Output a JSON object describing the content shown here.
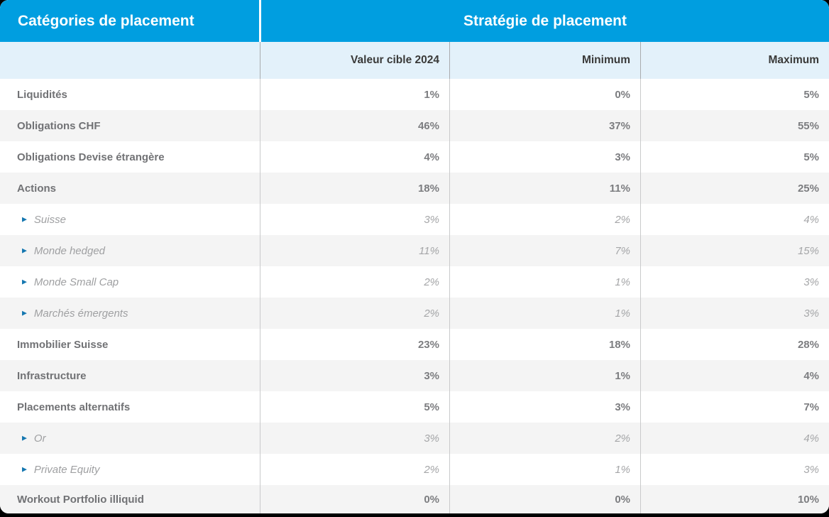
{
  "header": {
    "categories_title": "Catégories de placement",
    "strategy_title": "Stratégie de placement"
  },
  "columns": {
    "target": "Valeur cible 2024",
    "min": "Minimum",
    "max": "Maximum"
  },
  "icons": {
    "bullet": "▶"
  },
  "colors": {
    "header_blue": "#009EE0",
    "subheader_light_blue": "#E3F1FA",
    "alt_row_gray": "#F4F4F4",
    "bullet_blue": "#1577B0",
    "label_gray": "#717275",
    "sub_label_gray": "#9FA0A2",
    "page_background": "#000000"
  },
  "table": {
    "rows": [
      {
        "label": "Liquidités",
        "target": "1%",
        "min": "0%",
        "max": "5%",
        "sub": false
      },
      {
        "label": "Obligations CHF",
        "target": "46%",
        "min": "37%",
        "max": "55%",
        "sub": false
      },
      {
        "label": "Obligations Devise étrangère",
        "target": "4%",
        "min": "3%",
        "max": "5%",
        "sub": false
      },
      {
        "label": "Actions",
        "target": "18%",
        "min": "11%",
        "max": "25%",
        "sub": false
      },
      {
        "label": "Suisse",
        "target": "3%",
        "min": "2%",
        "max": "4%",
        "sub": true
      },
      {
        "label": "Monde hedged",
        "target": "11%",
        "min": "7%",
        "max": "15%",
        "sub": true
      },
      {
        "label": "Monde Small Cap",
        "target": "2%",
        "min": "1%",
        "max": "3%",
        "sub": true
      },
      {
        "label": "Marchés émergents",
        "target": "2%",
        "min": "1%",
        "max": "3%",
        "sub": true
      },
      {
        "label": "Immobilier Suisse",
        "target": "23%",
        "min": "18%",
        "max": "28%",
        "sub": false
      },
      {
        "label": "Infrastructure",
        "target": "3%",
        "min": "1%",
        "max": "4%",
        "sub": false
      },
      {
        "label": "Placements alternatifs",
        "target": "5%",
        "min": "3%",
        "max": "7%",
        "sub": false
      },
      {
        "label": "Or",
        "target": "3%",
        "min": "2%",
        "max": "4%",
        "sub": true
      },
      {
        "label": "Private Equity",
        "target": "2%",
        "min": "1%",
        "max": "3%",
        "sub": true
      },
      {
        "label": "Workout Portfolio illiquid",
        "target": "0%",
        "min": "0%",
        "max": "10%",
        "sub": false
      }
    ]
  }
}
